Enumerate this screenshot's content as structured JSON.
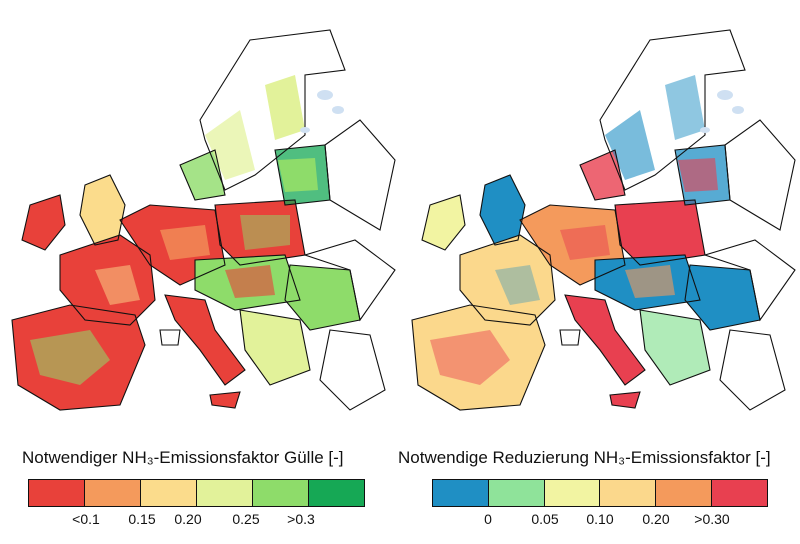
{
  "left_map": {
    "legend_title": "Notwendiger NH₃-Emissionsfaktor Gülle [-]",
    "colors": [
      "#e8413a",
      "#f49a5c",
      "#fbdc8c",
      "#e2f29a",
      "#8edc6a",
      "#16a855"
    ],
    "tick_labels": [
      "<0.1",
      "0.15",
      "0.20",
      "0.25",
      ">0.3"
    ]
  },
  "right_map": {
    "legend_title": "Notwendige Reduzierung NH₃-Emissionsfaktor [-]",
    "colors": [
      "#1f8fc4",
      "#8fe39a",
      "#f2f4a2",
      "#fbd88c",
      "#f49a5c",
      "#e84050"
    ],
    "tick_labels": [
      "0",
      "0.05",
      "0.10",
      "0.20",
      ">0.30"
    ]
  }
}
